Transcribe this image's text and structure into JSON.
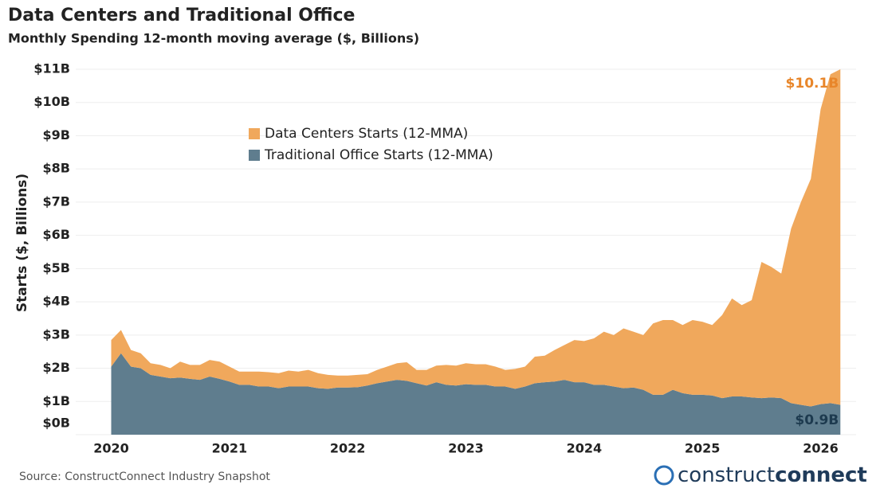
{
  "chart_data": {
    "type": "stacked_area",
    "title": "Data Centers and Traditional Office",
    "subtitle": "Monthly Spending 12-month moving average ($, Billions)",
    "y_label": "Starts ($, Billions)",
    "source": "Source: ConstructConnect Industry Snapshot",
    "logo": [
      "construct",
      "connect"
    ],
    "legend": "top-left",
    "grid": true,
    "xlim": [
      2019.7,
      2026.3
    ],
    "xticks": [
      2020,
      2021,
      2022,
      2023,
      2024,
      2025,
      2026
    ],
    "ylim": [
      0,
      11
    ],
    "yticks": [
      {
        "value": 0,
        "label": "$0B"
      },
      {
        "value": 1,
        "label": "$1B"
      },
      {
        "value": 2,
        "label": "$2B"
      },
      {
        "value": 3,
        "label": "$3B"
      },
      {
        "value": 4,
        "label": "$4B"
      },
      {
        "value": 5,
        "label": "$5B"
      },
      {
        "value": 6,
        "label": "$6B"
      },
      {
        "value": 7,
        "label": "$7B"
      },
      {
        "value": 8,
        "label": "$8B"
      },
      {
        "value": 9,
        "label": "$9B"
      },
      {
        "value": 10,
        "label": "$10B"
      },
      {
        "value": 11,
        "label": "$11B"
      }
    ],
    "x": [
      2020,
      2020.083,
      2020.167,
      2020.25,
      2020.333,
      2020.417,
      2020.5,
      2020.583,
      2020.667,
      2020.75,
      2020.833,
      2020.917,
      2021,
      2021.083,
      2021.167,
      2021.25,
      2021.333,
      2021.417,
      2021.5,
      2021.583,
      2021.667,
      2021.75,
      2021.833,
      2021.917,
      2022,
      2022.083,
      2022.167,
      2022.25,
      2022.333,
      2022.417,
      2022.5,
      2022.583,
      2022.667,
      2022.75,
      2022.833,
      2022.917,
      2023,
      2023.083,
      2023.167,
      2023.25,
      2023.333,
      2023.417,
      2023.5,
      2023.583,
      2023.667,
      2023.75,
      2023.833,
      2023.917,
      2024,
      2024.083,
      2024.167,
      2024.25,
      2024.333,
      2024.417,
      2024.5,
      2024.583,
      2024.667,
      2024.75,
      2024.833,
      2024.917,
      2025,
      2025.083,
      2025.167,
      2025.25,
      2025.333,
      2025.417,
      2025.5,
      2025.583,
      2025.667,
      2025.75,
      2025.833,
      2025.917,
      2026,
      2026.083,
      2026.167
    ],
    "series": [
      {
        "name": "Data Centers Starts (12-MMA)",
        "color": "#f0a85c",
        "values": [
          0.8,
          0.7,
          0.5,
          0.45,
          0.35,
          0.35,
          0.3,
          0.48,
          0.42,
          0.45,
          0.5,
          0.52,
          0.45,
          0.4,
          0.4,
          0.45,
          0.43,
          0.45,
          0.48,
          0.45,
          0.5,
          0.45,
          0.42,
          0.36,
          0.36,
          0.37,
          0.34,
          0.4,
          0.45,
          0.5,
          0.56,
          0.4,
          0.47,
          0.5,
          0.6,
          0.6,
          0.63,
          0.62,
          0.62,
          0.6,
          0.5,
          0.6,
          0.6,
          0.8,
          0.8,
          0.95,
          1.05,
          1.27,
          1.24,
          1.4,
          1.6,
          1.55,
          1.8,
          1.68,
          1.65,
          2.15,
          2.25,
          2.1,
          2.05,
          2.25,
          2.2,
          2.12,
          2.5,
          2.95,
          2.75,
          2.93,
          4.1,
          3.93,
          3.75,
          5.25,
          6.1,
          6.85,
          8.88,
          9.9,
          10.1
        ],
        "value_labels": {
          "74": "$10.1B"
        }
      },
      {
        "name": "Traditional Office Starts (12-MMA)",
        "color": "#5f7d8e",
        "values": [
          2.05,
          2.45,
          2.05,
          2.0,
          1.8,
          1.75,
          1.7,
          1.72,
          1.68,
          1.65,
          1.75,
          1.68,
          1.6,
          1.5,
          1.5,
          1.45,
          1.45,
          1.4,
          1.45,
          1.45,
          1.45,
          1.4,
          1.38,
          1.42,
          1.42,
          1.43,
          1.48,
          1.55,
          1.6,
          1.65,
          1.62,
          1.55,
          1.48,
          1.58,
          1.5,
          1.48,
          1.52,
          1.5,
          1.5,
          1.45,
          1.45,
          1.38,
          1.45,
          1.55,
          1.58,
          1.6,
          1.65,
          1.58,
          1.58,
          1.5,
          1.5,
          1.45,
          1.4,
          1.42,
          1.35,
          1.2,
          1.2,
          1.35,
          1.25,
          1.2,
          1.2,
          1.18,
          1.1,
          1.15,
          1.15,
          1.12,
          1.1,
          1.12,
          1.1,
          0.95,
          0.9,
          0.85,
          0.92,
          0.95,
          0.9
        ],
        "value_labels": {
          "74": "$0.9B"
        }
      }
    ]
  }
}
